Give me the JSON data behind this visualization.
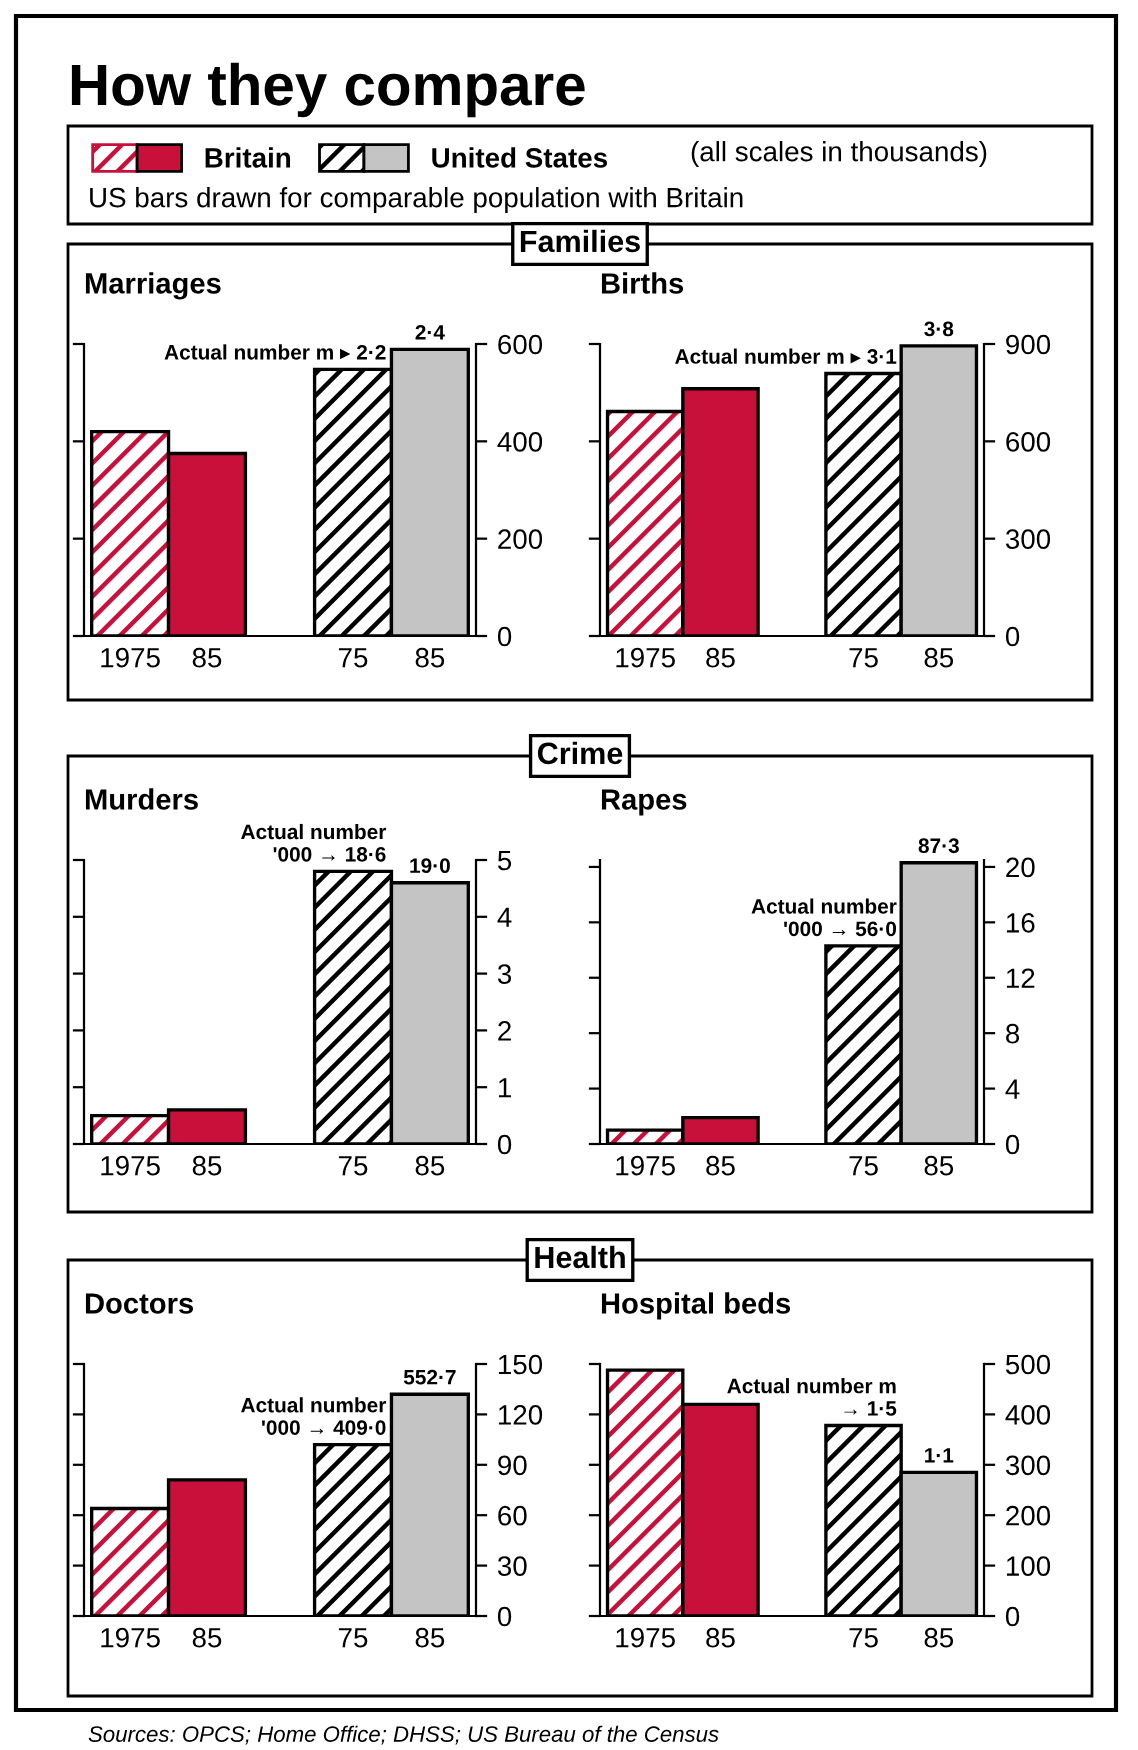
{
  "chart_data": [
    {
      "type": "other",
      "title": "How they compare",
      "subtitle": "US bars drawn for comparable population with Britain",
      "annotations": [
        "(all scales in thousands)",
        "Families",
        "Crime",
        "Health",
        "Sources: OPCS; Home Office; DHSS; US Bureau of the Census"
      ]
    },
    {
      "type": "bar",
      "title": "Marriages",
      "categories": [
        "1975",
        "85",
        "75",
        "85"
      ],
      "legend": "top",
      "series": [
        {
          "name": "Britain",
          "color": "#c8103a",
          "values": [
            420,
            375,
            null,
            null
          ]
        },
        {
          "name": "United States",
          "color": "#c4c4c4",
          "values": [
            null,
            null,
            548,
            589
          ]
        }
      ],
      "ylim": [
        0,
        600
      ],
      "yticks": [
        0,
        200,
        400,
        600
      ],
      "annotations": [
        {
          "text": "Actual number m ▸ 2·2",
          "x": "75",
          "y": 548
        },
        "2·4"
      ]
    },
    {
      "type": "bar",
      "title": "Births",
      "categories": [
        "1975",
        "85",
        "75",
        "85"
      ],
      "series": [
        {
          "color": "#c8103a",
          "values": [
            692,
            762,
            null,
            null
          ]
        },
        {
          "color": "#c4c4c4",
          "values": [
            null,
            null,
            809,
            894
          ]
        }
      ],
      "ylim": [
        0,
        900
      ],
      "yticks": [
        0,
        300,
        600,
        900
      ],
      "annotations": [
        {
          "text": "Actual number m ▸ 3·1",
          "x": "75",
          "y": 809
        },
        "3·8"
      ]
    },
    {
      "type": "bar",
      "title": "Murders",
      "categories": [
        "1975",
        "85",
        "75",
        "85"
      ],
      "series": [
        {
          "color": "#c8103a",
          "values": [
            0.5,
            0.6,
            null,
            null
          ]
        },
        {
          "color": "#c4c4c4",
          "values": [
            null,
            null,
            4.8,
            4.6
          ]
        }
      ],
      "ylim": [
        0,
        5
      ],
      "yticks": [
        0,
        1,
        2,
        3,
        4,
        5
      ],
      "annotations": [
        {
          "text": "Actual number\n'000 → 18·6",
          "x": "75",
          "y": 4.8
        },
        "19·0"
      ]
    },
    {
      "type": "bar",
      "title": "Rapes",
      "categories": [
        "1975",
        "85",
        "75",
        "85"
      ],
      "series": [
        {
          "color": "#c8103a",
          "values": [
            1.0,
            1.9,
            null,
            null
          ]
        },
        {
          "color": "#c4c4c4",
          "values": [
            null,
            null,
            14.3,
            20.3
          ]
        }
      ],
      "ylim": [
        0,
        20.5
      ],
      "yticks": [
        0,
        4,
        8,
        12,
        16,
        20
      ],
      "annotations": [
        {
          "text": "Actual number\n'000 → 56·0",
          "x": "75",
          "y": 14.3
        },
        "87·3"
      ]
    },
    {
      "type": "bar",
      "title": "Doctors",
      "categories": [
        "1975",
        "85",
        "75",
        "85"
      ],
      "series": [
        {
          "color": "#c8103a",
          "values": [
            64,
            81,
            null,
            null
          ]
        },
        {
          "color": "#c4c4c4",
          "values": [
            null,
            null,
            102,
            132
          ]
        }
      ],
      "ylim": [
        0,
        150
      ],
      "yticks": [
        0,
        30,
        60,
        90,
        120,
        150
      ],
      "annotations": [
        {
          "text": "Actual number\n'000 → 409·0",
          "x": "75",
          "y": 102
        },
        "552·7"
      ]
    },
    {
      "type": "bar",
      "title": "Hospital beds",
      "categories": [
        "1975",
        "85",
        "75",
        "85"
      ],
      "series": [
        {
          "color": "#c8103a",
          "values": [
            488,
            420,
            null,
            null
          ]
        },
        {
          "color": "#c4c4c4",
          "values": [
            null,
            null,
            378,
            285
          ]
        }
      ],
      "ylim": [
        0,
        500
      ],
      "yticks": [
        0,
        100,
        200,
        300,
        400,
        500
      ],
      "annotations": [
        {
          "text": "Actual number m\n→ 1·5",
          "x": "75",
          "y": 378
        },
        "1·1"
      ]
    }
  ]
}
